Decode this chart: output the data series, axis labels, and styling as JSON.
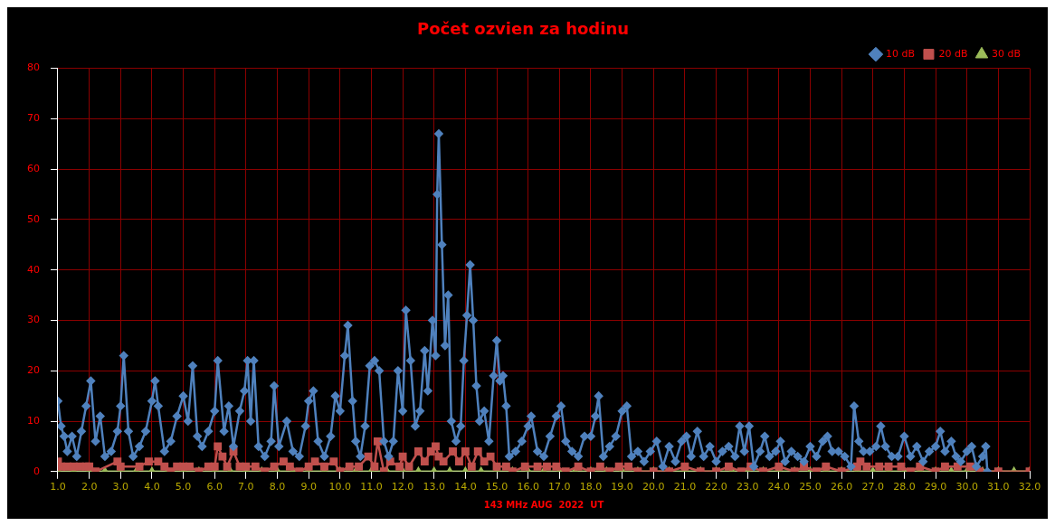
{
  "chart_data": {
    "type": "line",
    "title": "Počet ozvien za hodinu",
    "xlabel": "143 MHz AUG  2022  UT",
    "xlim": [
      1,
      32
    ],
    "xticks": [
      {
        "value": 1,
        "label": "1.0"
      },
      {
        "value": 2,
        "label": "2.0"
      },
      {
        "value": 3,
        "label": "3.0"
      },
      {
        "value": 4,
        "label": "4.0"
      },
      {
        "value": 5,
        "label": "5.0"
      },
      {
        "value": 6,
        "label": "6.0"
      },
      {
        "value": 7,
        "label": "7.0"
      },
      {
        "value": 8,
        "label": "8.0"
      },
      {
        "value": 9,
        "label": "9.0"
      },
      {
        "value": 10,
        "label": "10.0"
      },
      {
        "value": 11,
        "label": "11.0"
      },
      {
        "value": 12,
        "label": "12.0"
      },
      {
        "value": 13,
        "label": "13.0"
      },
      {
        "value": 14,
        "label": "14.0"
      },
      {
        "value": 15,
        "label": "15.0"
      },
      {
        "value": 16,
        "label": "16.0"
      },
      {
        "value": 17,
        "label": "17.0"
      },
      {
        "value": 18,
        "label": "18.0"
      },
      {
        "value": 19,
        "label": "19.0"
      },
      {
        "value": 20,
        "label": "20.0"
      },
      {
        "value": 21,
        "label": "21.0"
      },
      {
        "value": 22,
        "label": "22.0"
      },
      {
        "value": 23,
        "label": "23.0"
      },
      {
        "value": 24,
        "label": "24.0"
      },
      {
        "value": 25,
        "label": "25.0"
      },
      {
        "value": 26,
        "label": "26.0"
      },
      {
        "value": 27,
        "label": "27.0"
      },
      {
        "value": 28,
        "label": "28.0"
      },
      {
        "value": 29,
        "label": "29.0"
      },
      {
        "value": 30,
        "label": "30.0"
      },
      {
        "value": 31,
        "label": "31.0"
      },
      {
        "value": 32,
        "label": "32.0"
      }
    ],
    "ylim": [
      0,
      80
    ],
    "yticks": [
      0,
      10,
      20,
      30,
      40,
      50,
      60,
      70,
      80
    ],
    "grid": true,
    "legend": "top right",
    "line_style": "solid",
    "series": [
      {
        "name": "10 dB",
        "color": "#4f81bd",
        "marker": "diamond",
        "x": [
          1.0,
          1.1,
          1.2,
          1.3,
          1.45,
          1.6,
          1.75,
          1.9,
          2.05,
          2.2,
          2.35,
          2.5,
          2.7,
          2.9,
          3.0,
          3.1,
          3.25,
          3.4,
          3.6,
          3.8,
          4.0,
          4.1,
          4.2,
          4.4,
          4.6,
          4.8,
          5.0,
          5.15,
          5.3,
          5.45,
          5.6,
          5.8,
          6.0,
          6.1,
          6.3,
          6.45,
          6.6,
          6.8,
          6.95,
          7.05,
          7.15,
          7.25,
          7.4,
          7.6,
          7.8,
          7.9,
          8.05,
          8.3,
          8.5,
          8.7,
          8.9,
          9.0,
          9.15,
          9.3,
          9.5,
          9.7,
          9.85,
          10.0,
          10.15,
          10.25,
          10.4,
          10.5,
          10.65,
          10.8,
          10.95,
          11.1,
          11.25,
          11.4,
          11.55,
          11.7,
          11.85,
          12.0,
          12.1,
          12.25,
          12.4,
          12.55,
          12.7,
          12.8,
          12.95,
          13.05,
          13.1,
          13.15,
          13.25,
          13.35,
          13.45,
          13.55,
          13.7,
          13.85,
          13.95,
          14.05,
          14.15,
          14.25,
          14.35,
          14.45,
          14.6,
          14.75,
          14.9,
          15.0,
          15.1,
          15.2,
          15.3,
          15.4,
          15.6,
          15.8,
          16.0,
          16.1,
          16.3,
          16.5,
          16.7,
          16.9,
          17.05,
          17.2,
          17.4,
          17.6,
          17.8,
          18.0,
          18.15,
          18.25,
          18.4,
          18.6,
          18.8,
          19.0,
          19.15,
          19.3,
          19.5,
          19.7,
          19.9,
          20.1,
          20.3,
          20.5,
          20.7,
          20.9,
          21.05,
          21.2,
          21.4,
          21.6,
          21.8,
          22.0,
          22.2,
          22.4,
          22.6,
          22.75,
          22.9,
          23.05,
          23.2,
          23.4,
          23.55,
          23.7,
          23.9,
          24.05,
          24.2,
          24.4,
          24.6,
          24.8,
          25.0,
          25.2,
          25.4,
          25.55,
          25.7,
          25.9,
          26.1,
          26.3,
          26.4,
          26.55,
          26.7,
          26.9,
          27.1,
          27.25,
          27.4,
          27.6,
          27.8,
          28.0,
          28.2,
          28.4,
          28.6,
          28.8,
          29.0,
          29.15,
          29.3,
          29.5,
          29.65,
          29.8,
          30.0,
          30.15,
          30.3,
          30.5,
          30.6,
          30.65
        ],
        "values": [
          14,
          9,
          7,
          4,
          7,
          3,
          8,
          13,
          18,
          6,
          11,
          3,
          4,
          8,
          13,
          23,
          8,
          3,
          5,
          8,
          14,
          18,
          13,
          4,
          6,
          11,
          15,
          10,
          21,
          7,
          5,
          8,
          12,
          22,
          8,
          13,
          5,
          12,
          16,
          22,
          10,
          22,
          5,
          3,
          6,
          17,
          5,
          10,
          4,
          3,
          9,
          14,
          16,
          6,
          3,
          7,
          15,
          12,
          23,
          29,
          14,
          6,
          3,
          9,
          21,
          22,
          20,
          6,
          3,
          6,
          20,
          12,
          32,
          22,
          9,
          12,
          24,
          16,
          30,
          23,
          55,
          67,
          45,
          25,
          35,
          10,
          6,
          9,
          22,
          31,
          41,
          30,
          17,
          10,
          12,
          6,
          19,
          26,
          18,
          19,
          13,
          3,
          4,
          6,
          9,
          11,
          4,
          3,
          7,
          11,
          13,
          6,
          4,
          3,
          7,
          7,
          11,
          15,
          3,
          5,
          7,
          12,
          13,
          3,
          4,
          2,
          4,
          6,
          1,
          5,
          2,
          6,
          7,
          3,
          8,
          3,
          5,
          2,
          4,
          5,
          3,
          9,
          4,
          9,
          1,
          4,
          7,
          3,
          4,
          6,
          2,
          4,
          3,
          2,
          5,
          3,
          6,
          7,
          4,
          4,
          3,
          1,
          13,
          6,
          4,
          4,
          5,
          9,
          5,
          3,
          3,
          7,
          3,
          5,
          2,
          4,
          5,
          8,
          4,
          6,
          3,
          2,
          4,
          5,
          1,
          3,
          5,
          0
        ]
      },
      {
        "name": "20 dB",
        "color": "#c0504d",
        "marker": "square",
        "x": [
          1.0,
          1.1,
          1.3,
          1.5,
          1.7,
          1.9,
          2.0,
          2.2,
          2.9,
          3.0,
          3.6,
          3.9,
          4.2,
          4.4,
          4.6,
          4.8,
          5.0,
          5.2,
          5.5,
          5.8,
          6.0,
          6.1,
          6.25,
          6.4,
          6.6,
          6.8,
          7.0,
          7.3,
          7.6,
          7.9,
          8.2,
          8.4,
          8.7,
          9.0,
          9.2,
          9.5,
          9.8,
          10.0,
          10.3,
          10.6,
          10.9,
          11.1,
          11.2,
          11.4,
          11.6,
          11.9,
          12.0,
          12.2,
          12.5,
          12.7,
          12.9,
          13.05,
          13.15,
          13.3,
          13.6,
          13.8,
          14.0,
          14.2,
          14.4,
          14.6,
          14.8,
          15.0,
          15.3,
          15.5,
          15.9,
          16.3,
          16.6,
          16.9,
          17.2,
          17.6,
          18.0,
          18.3,
          18.6,
          18.9,
          19.2,
          19.5,
          20.0,
          20.5,
          21.0,
          21.5,
          22.0,
          22.4,
          22.8,
          23.1,
          23.5,
          24.0,
          24.5,
          24.8,
          25.2,
          25.5,
          26.0,
          26.5,
          26.6,
          26.8,
          27.2,
          27.5,
          27.9,
          28.2,
          28.5,
          29.0,
          29.3,
          29.7,
          30.1,
          30.4,
          31.0,
          32.0
        ],
        "values": [
          2,
          1,
          1,
          1,
          1,
          1,
          1,
          0,
          2,
          1,
          1,
          2,
          2,
          1,
          0,
          1,
          1,
          1,
          0,
          1,
          1,
          5,
          3,
          1,
          4,
          1,
          1,
          1,
          0,
          1,
          2,
          1,
          0,
          1,
          2,
          1,
          2,
          0,
          1,
          1,
          3,
          1,
          6,
          0,
          2,
          1,
          3,
          1,
          4,
          2,
          4,
          5,
          3,
          2,
          4,
          2,
          4,
          1,
          4,
          2,
          3,
          1,
          1,
          0,
          1,
          1,
          1,
          1,
          0,
          1,
          0,
          1,
          0,
          1,
          1,
          0,
          0,
          0,
          1,
          0,
          0,
          1,
          0,
          1,
          0,
          1,
          0,
          1,
          0,
          1,
          0,
          1,
          2,
          1,
          1,
          1,
          1,
          0,
          1,
          0,
          1,
          1,
          1,
          0,
          0,
          0
        ]
      },
      {
        "name": "30 dB",
        "color": "#9bbb59",
        "marker": "triangle",
        "x": [
          1,
          1.5,
          2,
          2.5,
          3,
          3.5,
          4,
          4.5,
          5,
          5.5,
          6,
          6.5,
          7,
          7.5,
          8,
          8.5,
          9,
          9.5,
          10,
          10.5,
          11,
          11.5,
          12,
          12.5,
          13,
          13.5,
          14,
          14.5,
          15,
          15.5,
          16,
          16.5,
          17,
          17.5,
          18,
          18.5,
          19,
          19.5,
          20,
          20.5,
          21,
          21.5,
          22,
          22.5,
          23,
          23.5,
          24,
          24.5,
          25,
          25.5,
          26,
          26.5,
          27,
          27.5,
          28,
          28.5,
          29,
          29.5,
          30,
          30.5,
          31,
          31.5,
          32
        ],
        "values": [
          0,
          0,
          0,
          0,
          0,
          0,
          0,
          0,
          0,
          0,
          0,
          0,
          0,
          0,
          0,
          0,
          0,
          0,
          0,
          0,
          0,
          0,
          0,
          0,
          0,
          0,
          0,
          0,
          0,
          0,
          0,
          0,
          0,
          0,
          0,
          0,
          0,
          0,
          0,
          0,
          0,
          0,
          0,
          0,
          0,
          0,
          0,
          0,
          0,
          0,
          0,
          0,
          0,
          0,
          0,
          0,
          0,
          0,
          0,
          0,
          0,
          0,
          0
        ]
      }
    ]
  }
}
